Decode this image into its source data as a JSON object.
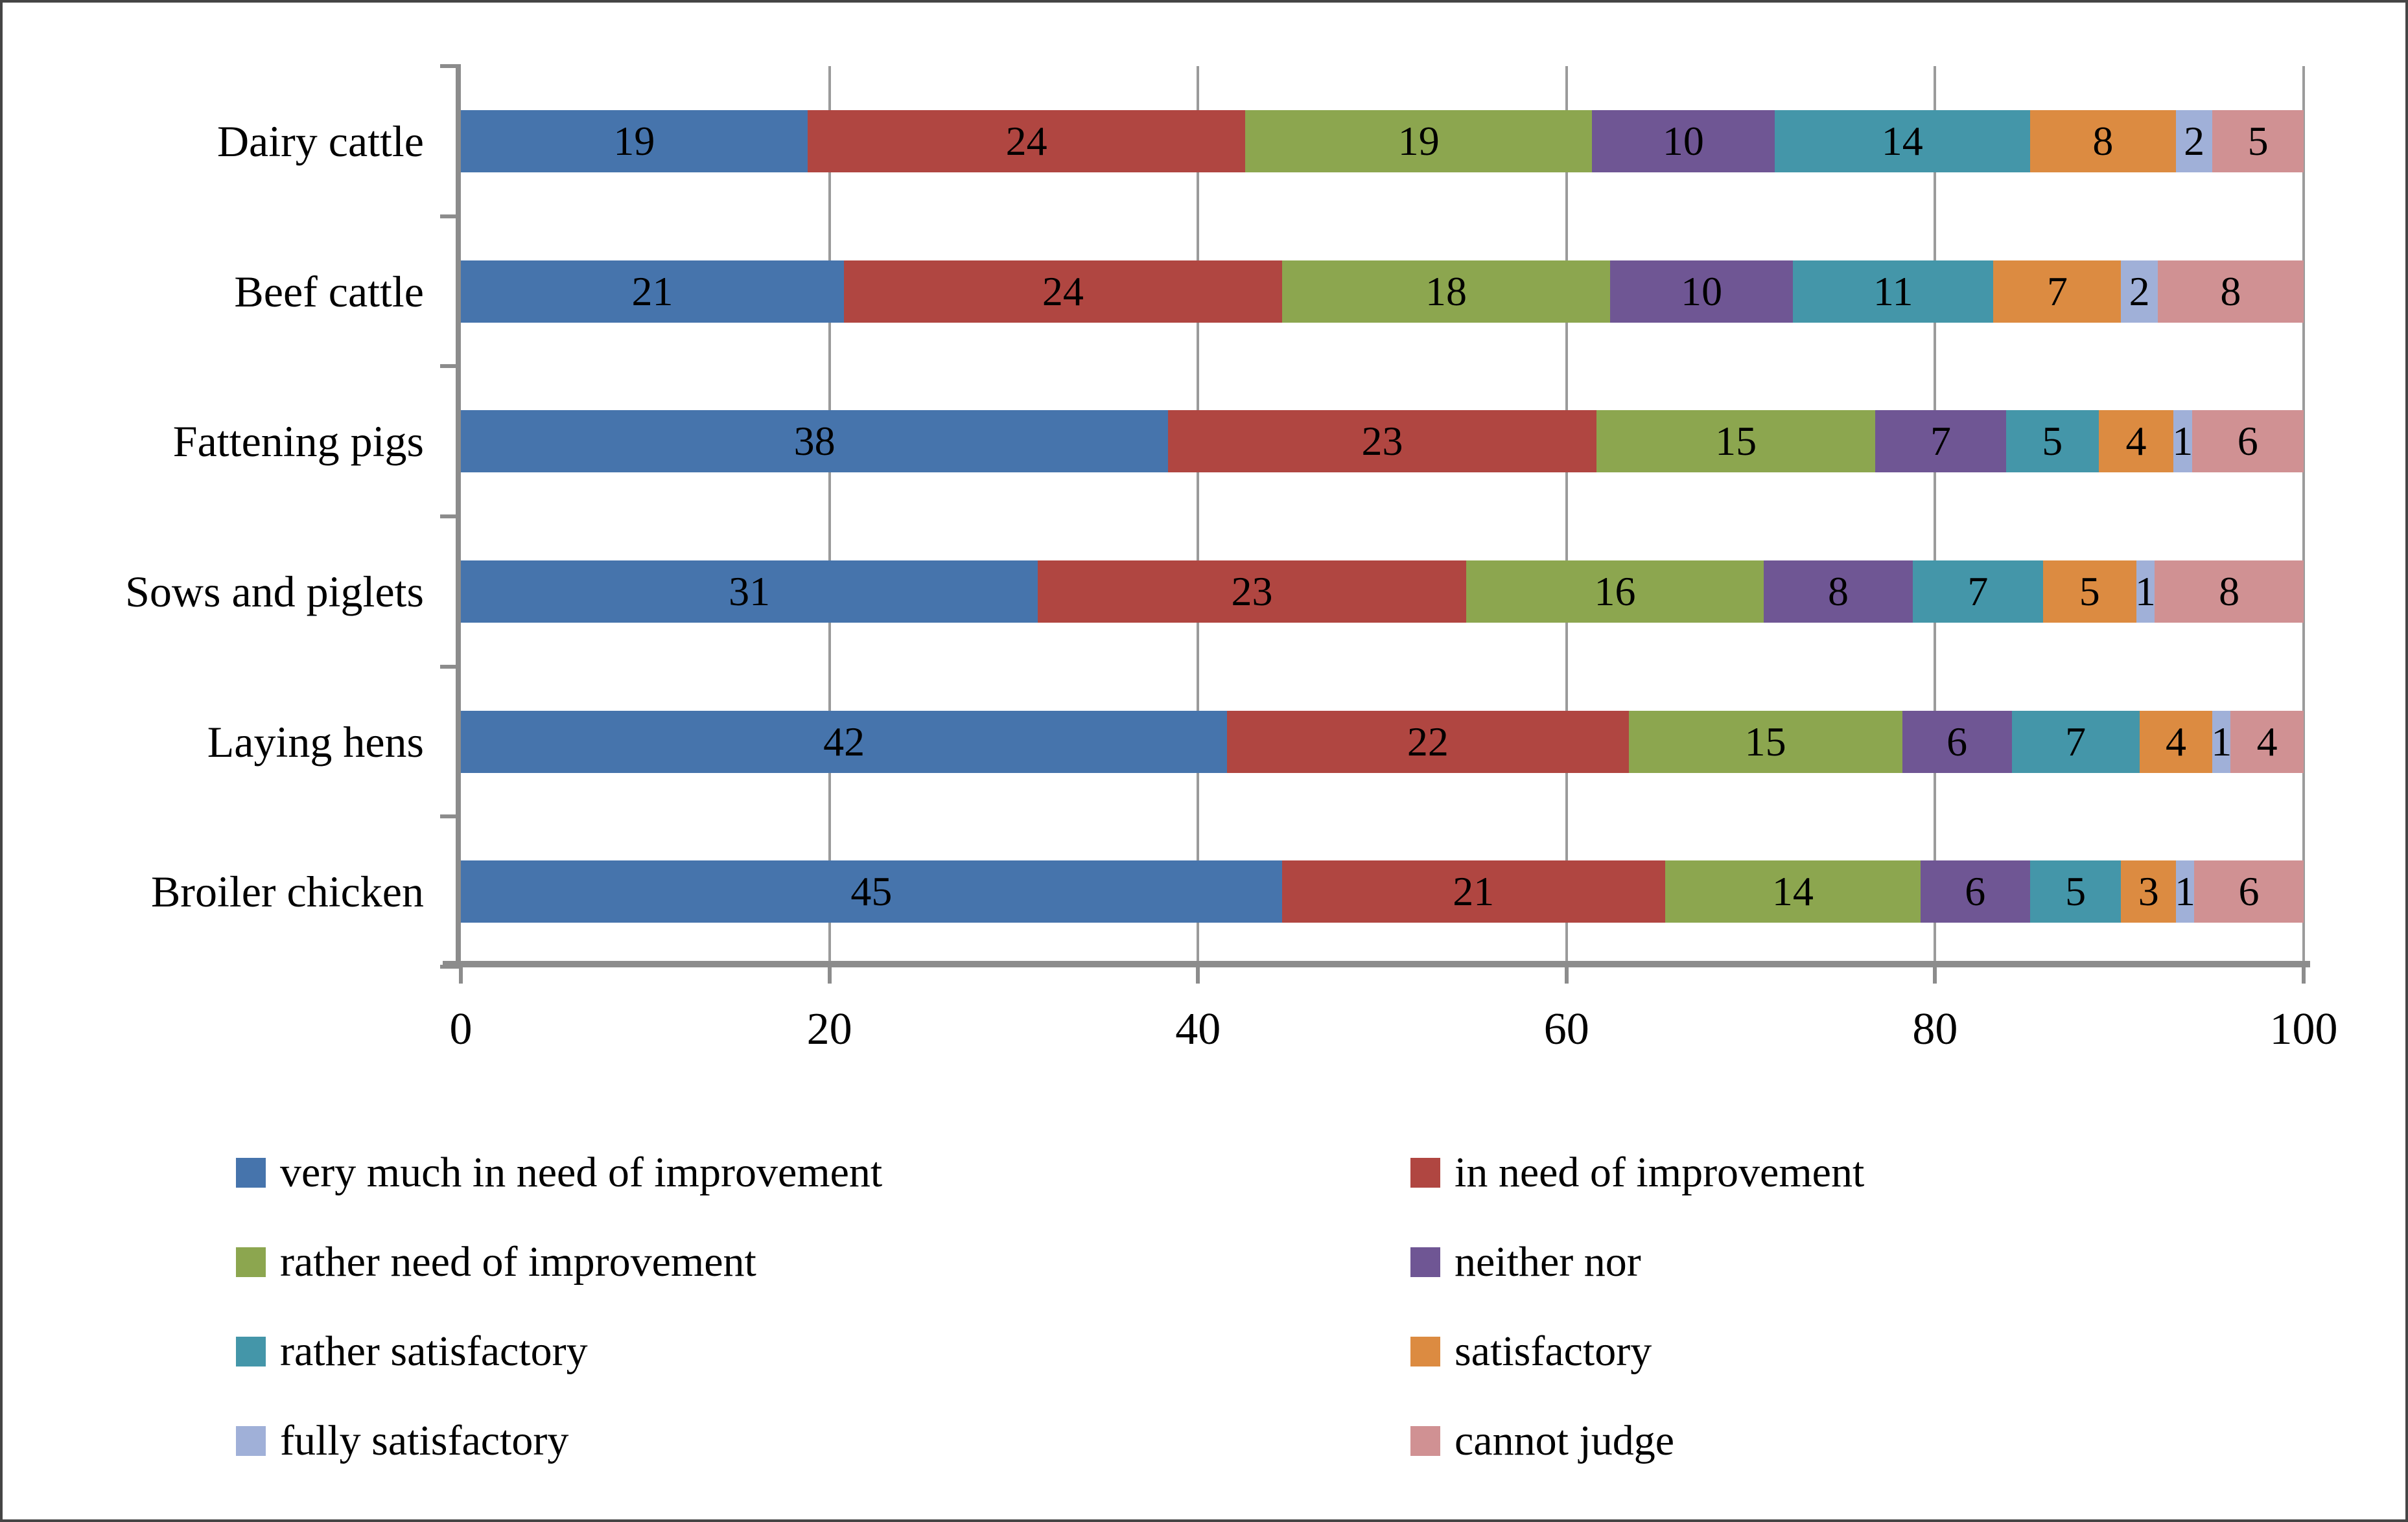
{
  "figure": {
    "background": "#FFFFFF",
    "border_color": "#454545"
  },
  "chart_data": {
    "type": "bar",
    "orientation": "horizontal",
    "stacked": true,
    "title": "",
    "xlabel": "",
    "ylabel": "",
    "categories": [
      "Dairy cattle",
      "Beef cattle",
      "Fattening pigs",
      "Sows and piglets",
      "Laying hens",
      "Broiler chicken"
    ],
    "series": [
      {
        "name": "very much in need of improvement",
        "color": "#4674AC",
        "values": [
          19,
          21,
          38,
          31,
          42,
          45
        ]
      },
      {
        "name": "in need of improvement",
        "color": "#B04641",
        "values": [
          24,
          24,
          23,
          23,
          22,
          21
        ]
      },
      {
        "name": "rather need of improvement",
        "color": "#8CA64F",
        "values": [
          19,
          18,
          15,
          16,
          15,
          14
        ]
      },
      {
        "name": "neither nor",
        "color": "#6F5694",
        "values": [
          10,
          10,
          7,
          8,
          6,
          6
        ]
      },
      {
        "name": "rather satisfactory",
        "color": "#4496A9",
        "values": [
          14,
          11,
          5,
          7,
          7,
          5
        ]
      },
      {
        "name": "satisfactory",
        "color": "#DC8B41",
        "values": [
          8,
          7,
          4,
          5,
          4,
          3
        ]
      },
      {
        "name": "fully satisfactory",
        "color": "#A0B0D8",
        "values": [
          2,
          2,
          1,
          1,
          1,
          1
        ]
      },
      {
        "name": "cannot judge",
        "color": "#D09193",
        "values": [
          5,
          8,
          6,
          8,
          4,
          6
        ]
      }
    ],
    "x_ticks": [
      0,
      20,
      40,
      60,
      80,
      100
    ],
    "xlim": [
      0,
      100
    ],
    "grid": true,
    "grid_color": "#9B9B9B",
    "axis_color": "#8C8C8C",
    "data_label_color": "#000000",
    "legend_position": "bottom",
    "legend_columns": 2
  }
}
